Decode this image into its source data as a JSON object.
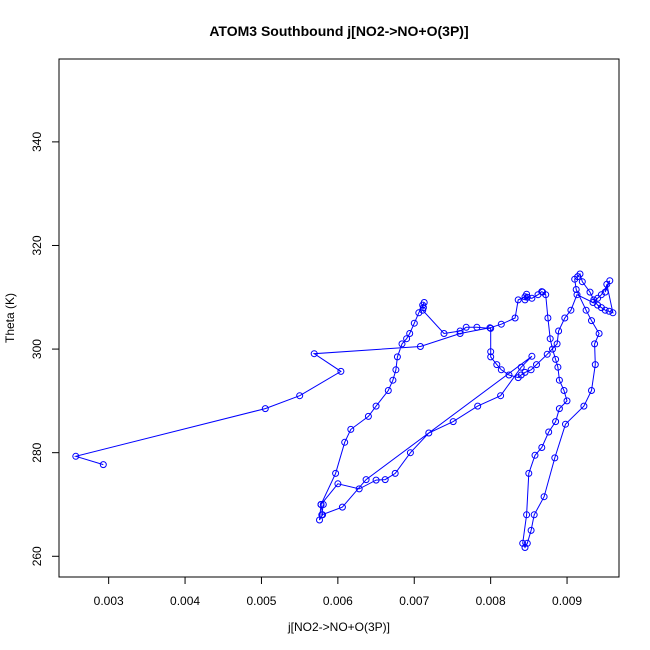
{
  "chart_data": {
    "type": "line",
    "title": "ATOM3 Southbound j[NO2->NO+O(3P)]",
    "xlabel": "j[NO2->NO+O(3P)]",
    "ylabel": "Theta (K)",
    "xlim": [
      0.00235,
      0.00968
    ],
    "ylim": [
      256.0,
      356.0
    ],
    "xticks": [
      0.003,
      0.004,
      0.005,
      0.006,
      0.007,
      0.008,
      0.009
    ],
    "xtick_labels": [
      "0.003",
      "0.004",
      "0.005",
      "0.006",
      "0.007",
      "0.008",
      "0.009"
    ],
    "yticks": [
      260,
      280,
      300,
      320,
      340
    ],
    "ytick_labels": [
      "260",
      "280",
      "300",
      "320",
      "340"
    ],
    "grid": false,
    "series": [
      {
        "color": "#0000ff",
        "marker": "open-circle",
        "line": true,
        "x": [
          0.00293,
          0.00257,
          0.00505,
          0.0055,
          0.00604,
          0.00569,
          0.00708,
          0.0076,
          0.00799,
          0.00814,
          0.00832,
          0.00836,
          0.00845,
          0.00847,
          0.00845,
          0.00848,
          0.00854,
          0.00862,
          0.00867,
          0.00868,
          0.00872,
          0.00875,
          0.00878,
          0.00881,
          0.00885,
          0.00888,
          0.0089,
          0.00896,
          0.009,
          0.0089,
          0.00885,
          0.00876,
          0.00867,
          0.00858,
          0.0085,
          0.00847,
          0.00842,
          0.00845,
          0.00848,
          0.00853,
          0.00857,
          0.0087,
          0.00884,
          0.00898,
          0.00922,
          0.00932,
          0.00937,
          0.00936,
          0.00942,
          0.00932,
          0.00925,
          0.00912,
          0.0091,
          0.00914,
          0.00917,
          0.0092,
          0.0093,
          0.00935,
          0.0094,
          0.00945,
          0.0095,
          0.00955,
          0.0096,
          0.00952,
          0.0095,
          0.00956,
          0.00945,
          0.0094,
          0.00934,
          0.00913,
          0.00905,
          0.00897,
          0.00889,
          0.00887,
          0.00874,
          0.0086,
          0.00853,
          0.00845,
          0.0084,
          0.00836,
          0.00824,
          0.00814,
          0.00808,
          0.008,
          0.008,
          0.008,
          0.00782,
          0.00768,
          0.0076,
          0.00739,
          0.00711,
          0.00712,
          0.00711,
          0.00713,
          0.00706,
          0.007,
          0.00694,
          0.0069,
          0.00684,
          0.00678,
          0.00676,
          0.00672,
          0.00666,
          0.0065,
          0.0064,
          0.00617,
          0.00609,
          0.00597,
          0.00578,
          0.00576,
          0.0058,
          0.00578,
          0.006,
          0.00628,
          0.0065,
          0.00662,
          0.00675,
          0.00695,
          0.00719,
          0.00751,
          0.00783,
          0.00813,
          0.0084,
          0.00854,
          0.00637,
          0.00606,
          0.00579,
          0.00581
        ],
        "y": [
          277.7,
          279.3,
          288.5,
          291.0,
          295.7,
          299.1,
          300.5,
          303.0,
          304.1,
          304.8,
          306.0,
          309.5,
          310.1,
          310.6,
          309.5,
          310.0,
          309.8,
          310.5,
          311.1,
          311.0,
          310.5,
          306.0,
          302.0,
          300.0,
          298.0,
          296.5,
          294.0,
          292.0,
          290.0,
          288.5,
          286.0,
          284.0,
          281.0,
          279.5,
          276.0,
          268.0,
          262.5,
          261.7,
          262.5,
          265.0,
          268.0,
          271.5,
          279.0,
          285.5,
          289.0,
          292.0,
          297.0,
          301.0,
          303.0,
          305.5,
          307.5,
          311.5,
          313.5,
          314.0,
          314.5,
          313.0,
          311.0,
          309.5,
          308.5,
          308.0,
          307.5,
          307.3,
          307.0,
          312.5,
          311.0,
          313.2,
          310.5,
          309.8,
          309.0,
          310.5,
          307.5,
          306.0,
          303.5,
          301.0,
          299.0,
          297.0,
          296.0,
          295.5,
          295.0,
          294.5,
          295.0,
          296.0,
          297.0,
          298.5,
          299.5,
          304.0,
          304.2,
          304.2,
          303.5,
          303.0,
          307.5,
          308.0,
          308.5,
          309.0,
          307.0,
          305.0,
          303.0,
          302.0,
          301.0,
          298.5,
          296.0,
          294.0,
          292.0,
          289.0,
          287.0,
          284.5,
          282.0,
          276.0,
          270.0,
          267.0,
          268.0,
          270.0,
          274.0,
          273.0,
          274.7,
          274.8,
          276.0,
          280.0,
          283.8,
          286.0,
          289.0,
          291.0,
          296.5,
          298.6,
          274.8,
          269.5,
          268.0,
          270.0
        ]
      }
    ]
  }
}
